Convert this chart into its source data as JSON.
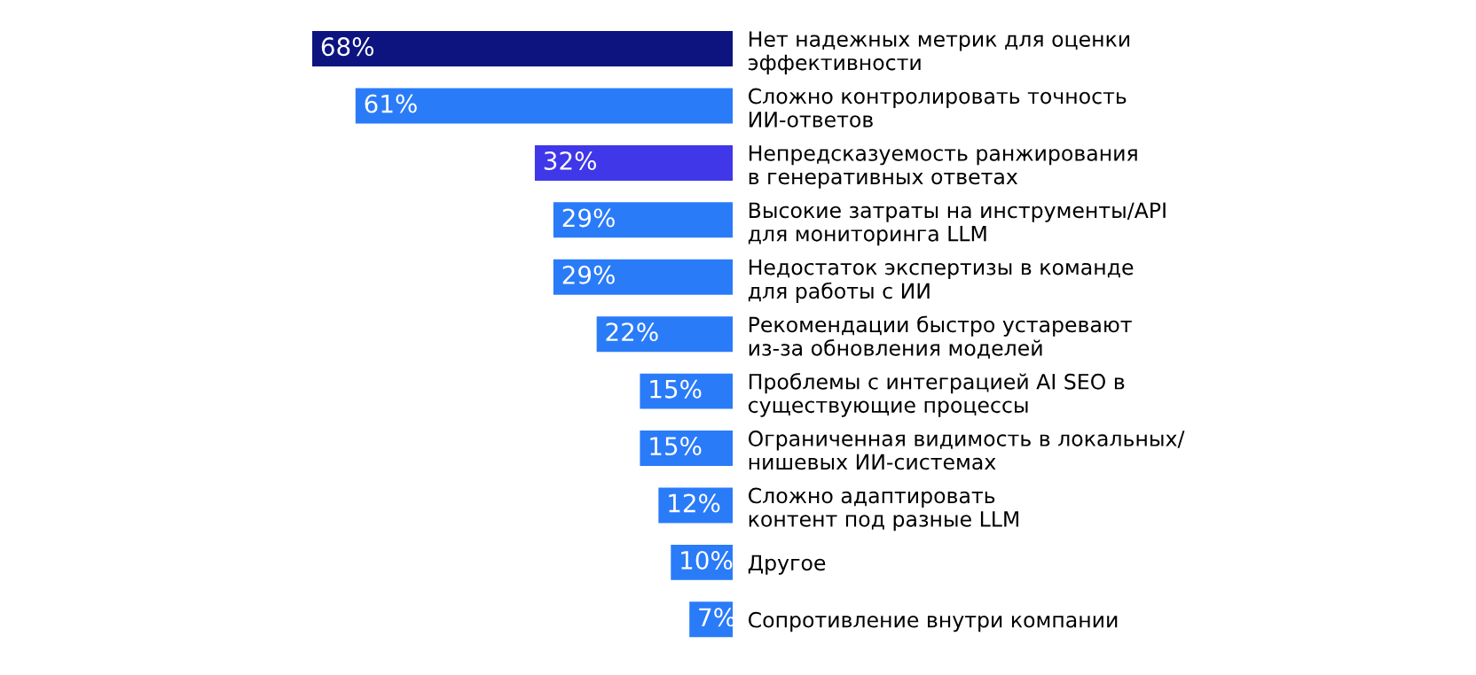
{
  "chart_data": {
    "type": "bar",
    "orientation": "horizontal",
    "categories": [
      "Нет надежных метрик для оценки\nэффективности",
      "Сложно контролировать точность\nИИ-ответов",
      "Непредсказуемость ранжирования\nв генеративных ответах",
      "Высокие затраты на инструменты/API\nдля мониторинга LLM",
      "Недостаток экспертизы в команде\nдля работы с ИИ",
      "Рекомендации быстро устаревают\nиз-за обновления моделей",
      "Проблемы с интеграцией AI SEO в\nсуществующие процессы",
      "Ограниченная видимость в локальных/\nнишевых ИИ-системах",
      "Сложно адаптировать\nконтент под разные LLM",
      "Другое",
      "Сопротивление внутри компании"
    ],
    "values": [
      68,
      61,
      32,
      29,
      29,
      22,
      15,
      15,
      12,
      10,
      7
    ],
    "value_labels": [
      "68%",
      "61%",
      "32%",
      "29%",
      "29%",
      "22%",
      "15%",
      "15%",
      "12%",
      "10%",
      "7%"
    ],
    "colors": [
      "#0d1480",
      "#2a7bf8",
      "#3f37e8",
      "#2a7bf8",
      "#2a7bf8",
      "#2a7bf8",
      "#2a7bf8",
      "#2a7bf8",
      "#2a7bf8",
      "#2a7bf8",
      "#2a7bf8"
    ],
    "grid": false,
    "legend": false
  }
}
